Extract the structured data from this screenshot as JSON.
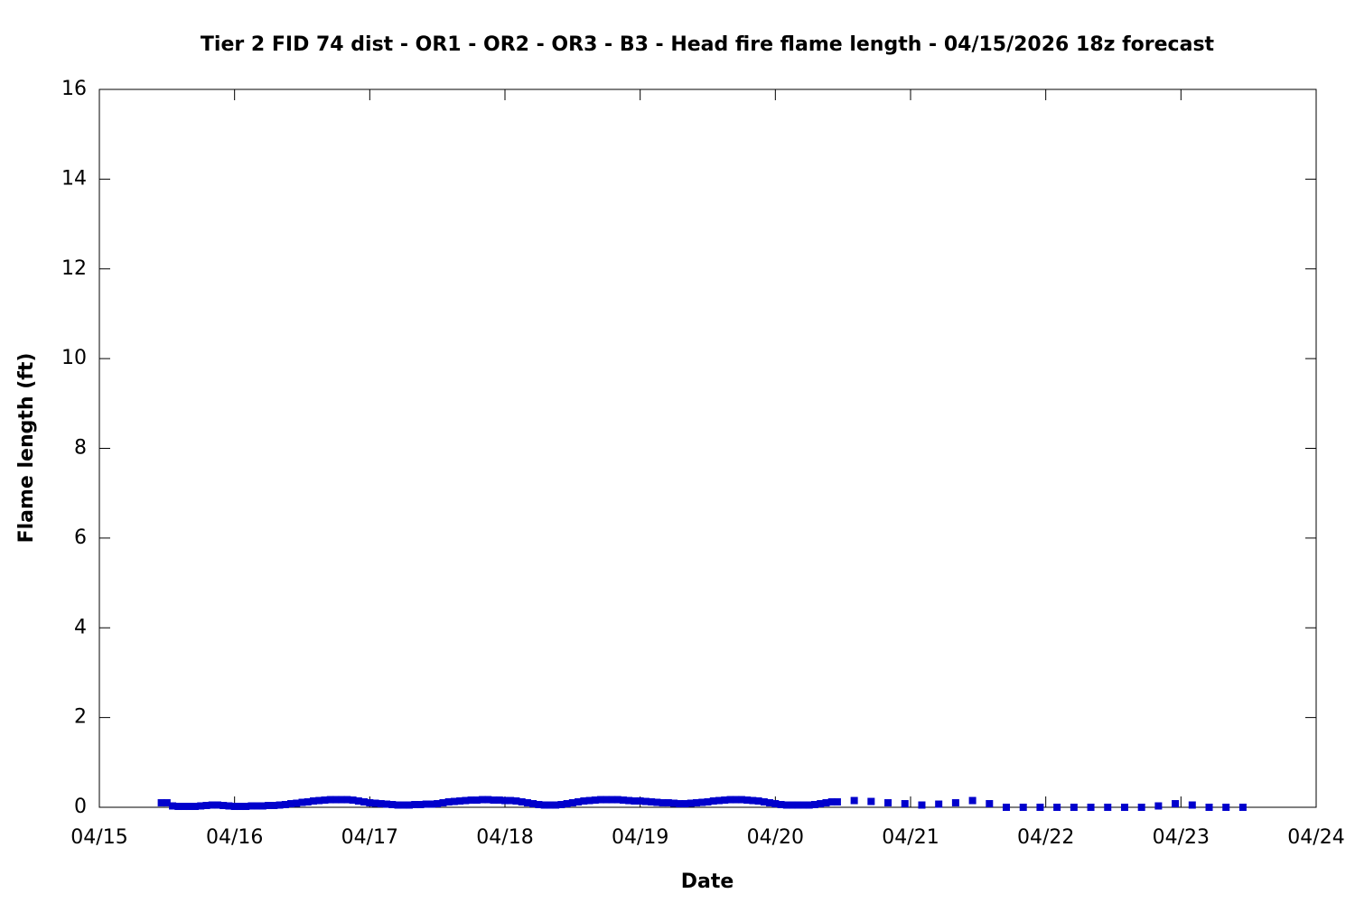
{
  "chart_data": {
    "type": "scatter",
    "title": "Tier 2 FID 74 dist - OR1 - OR2 - OR3 - B3 - Head fire flame length - 04/15/2026 18z forecast",
    "x_label": "Date",
    "y_label": "Flame length (ft)",
    "xlim": [
      0,
      216
    ],
    "xticks": [
      {
        "value": 0,
        "label": "04/15"
      },
      {
        "value": 24,
        "label": "04/16"
      },
      {
        "value": 48,
        "label": "04/17"
      },
      {
        "value": 72,
        "label": "04/18"
      },
      {
        "value": 96,
        "label": "04/19"
      },
      {
        "value": 120,
        "label": "04/20"
      },
      {
        "value": 144,
        "label": "04/21"
      },
      {
        "value": 168,
        "label": "04/22"
      },
      {
        "value": 192,
        "label": "04/23"
      },
      {
        "value": 216,
        "label": "04/24"
      }
    ],
    "ylim": [
      0,
      16
    ],
    "yticks": [
      0,
      2,
      4,
      6,
      8,
      10,
      12,
      14,
      16
    ],
    "grid": false,
    "series": [
      {
        "color": "#0000cc",
        "x": [
          11,
          12,
          13,
          14,
          15,
          16,
          17,
          18,
          19,
          20,
          21,
          22,
          23,
          24,
          25,
          26,
          27,
          28,
          29,
          30,
          31,
          32,
          33,
          34,
          35,
          36,
          37,
          38,
          39,
          40,
          41,
          42,
          43,
          44,
          45,
          46,
          47,
          48,
          49,
          50,
          51,
          52,
          53,
          54,
          55,
          56,
          57,
          58,
          59,
          60,
          61,
          62,
          63,
          64,
          65,
          66,
          67,
          68,
          69,
          70,
          71,
          72,
          73,
          74,
          75,
          76,
          77,
          78,
          79,
          80,
          81,
          82,
          83,
          84,
          85,
          86,
          87,
          88,
          89,
          90,
          91,
          92,
          93,
          94,
          95,
          96,
          97,
          98,
          99,
          100,
          101,
          102,
          103,
          104,
          105,
          106,
          107,
          108,
          109,
          110,
          111,
          112,
          113,
          114,
          115,
          116,
          117,
          118,
          119,
          120,
          121,
          122,
          123,
          124,
          125,
          126,
          127,
          128,
          129,
          130,
          131,
          134,
          137,
          140,
          143,
          146,
          149,
          152,
          155,
          158,
          161,
          164,
          167,
          170,
          173,
          176,
          179,
          182,
          185,
          188,
          191,
          194,
          197,
          200,
          203
        ],
        "values": [
          0.1,
          0.1,
          0.03,
          0.02,
          0.02,
          0.02,
          0.02,
          0.03,
          0.04,
          0.05,
          0.05,
          0.04,
          0.03,
          0.02,
          0.02,
          0.02,
          0.03,
          0.03,
          0.03,
          0.04,
          0.04,
          0.05,
          0.06,
          0.08,
          0.09,
          0.11,
          0.12,
          0.14,
          0.15,
          0.16,
          0.17,
          0.17,
          0.17,
          0.17,
          0.16,
          0.14,
          0.12,
          0.1,
          0.09,
          0.08,
          0.07,
          0.06,
          0.05,
          0.05,
          0.05,
          0.06,
          0.06,
          0.07,
          0.07,
          0.08,
          0.1,
          0.12,
          0.13,
          0.14,
          0.15,
          0.16,
          0.16,
          0.17,
          0.17,
          0.16,
          0.16,
          0.15,
          0.15,
          0.14,
          0.12,
          0.1,
          0.08,
          0.06,
          0.05,
          0.05,
          0.05,
          0.06,
          0.08,
          0.1,
          0.12,
          0.14,
          0.15,
          0.16,
          0.17,
          0.17,
          0.17,
          0.17,
          0.16,
          0.15,
          0.14,
          0.14,
          0.13,
          0.12,
          0.11,
          0.1,
          0.1,
          0.09,
          0.08,
          0.08,
          0.09,
          0.1,
          0.11,
          0.12,
          0.14,
          0.15,
          0.16,
          0.17,
          0.17,
          0.17,
          0.16,
          0.15,
          0.14,
          0.12,
          0.1,
          0.08,
          0.06,
          0.05,
          0.05,
          0.05,
          0.05,
          0.05,
          0.06,
          0.08,
          0.1,
          0.12,
          0.12,
          0.15,
          0.13,
          0.1,
          0.08,
          0.05,
          0.07,
          0.1,
          0.15,
          0.08,
          0,
          0,
          0,
          0,
          0,
          0,
          0,
          0,
          0,
          0.03,
          0.08,
          0.05,
          0,
          0,
          0
        ]
      }
    ]
  }
}
